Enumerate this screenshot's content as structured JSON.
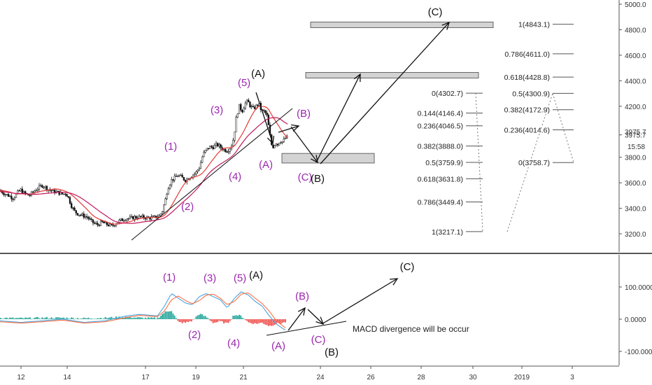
{
  "chart_data": [
    {
      "type": "candlestick",
      "panel": "price",
      "currency_hint": "",
      "y_ticks": [
        "5000.0",
        "4800.0",
        "4600.0",
        "4400.0",
        "4200.0",
        "3975.7",
        "3800.0",
        "3600.0",
        "3400.0",
        "3200.0"
      ],
      "current_price_label": "3975.7",
      "time_label": "15:58",
      "ylim": [
        3120,
        5020
      ],
      "x_ticks": [
        "12",
        "14",
        "17",
        "19",
        "21",
        "24",
        "26",
        "28",
        "30",
        "2019",
        "3"
      ],
      "close_path": [
        [
          0,
          3540
        ],
        [
          5,
          3520
        ],
        [
          10,
          3505
        ],
        [
          14,
          3495
        ],
        [
          18,
          3480
        ],
        [
          22,
          3500
        ],
        [
          26,
          3530
        ],
        [
          30,
          3545
        ],
        [
          34,
          3520
        ],
        [
          38,
          3510
        ],
        [
          42,
          3500
        ],
        [
          46,
          3520
        ],
        [
          50,
          3540
        ],
        [
          55,
          3560
        ],
        [
          60,
          3580
        ],
        [
          64,
          3570
        ],
        [
          68,
          3550
        ],
        [
          72,
          3540
        ],
        [
          76,
          3530
        ],
        [
          80,
          3530
        ],
        [
          85,
          3520
        ],
        [
          90,
          3510
        ],
        [
          94,
          3520
        ],
        [
          98,
          3480
        ],
        [
          102,
          3420
        ],
        [
          106,
          3380
        ],
        [
          110,
          3360
        ],
        [
          115,
          3350
        ],
        [
          120,
          3340
        ],
        [
          125,
          3330
        ],
        [
          130,
          3300
        ],
        [
          135,
          3280
        ],
        [
          140,
          3270
        ],
        [
          145,
          3290
        ],
        [
          150,
          3280
        ],
        [
          155,
          3270
        ],
        [
          160,
          3260
        ],
        [
          165,
          3280
        ],
        [
          170,
          3300
        ],
        [
          175,
          3310
        ],
        [
          180,
          3320
        ],
        [
          186,
          3320
        ],
        [
          192,
          3330
        ],
        [
          198,
          3330
        ],
        [
          204,
          3330
        ],
        [
          210,
          3325
        ],
        [
          216,
          3325
        ],
        [
          222,
          3330
        ],
        [
          228,
          3340
        ],
        [
          232,
          3380
        ],
        [
          236,
          3460
        ],
        [
          240,
          3560
        ],
        [
          245,
          3620
        ],
        [
          250,
          3640
        ],
        [
          255,
          3660
        ],
        [
          260,
          3640
        ],
        [
          265,
          3620
        ],
        [
          270,
          3640
        ],
        [
          275,
          3660
        ],
        [
          280,
          3680
        ],
        [
          285,
          3720
        ],
        [
          290,
          3820
        ],
        [
          295,
          3860
        ],
        [
          300,
          3880
        ],
        [
          305,
          3880
        ],
        [
          310,
          3900
        ],
        [
          315,
          3880
        ],
        [
          320,
          3860
        ],
        [
          325,
          3850
        ],
        [
          330,
          3880
        ],
        [
          334,
          3950
        ],
        [
          338,
          4120
        ],
        [
          342,
          4200
        ],
        [
          346,
          4160
        ],
        [
          350,
          4220
        ],
        [
          354,
          4240
        ],
        [
          358,
          4200
        ],
        [
          362,
          4180
        ],
        [
          366,
          4200
        ],
        [
          370,
          4220
        ],
        [
          374,
          4160
        ],
        [
          378,
          4160
        ],
        [
          382,
          4120
        ],
        [
          385,
          4000
        ],
        [
          388,
          3900
        ],
        [
          391,
          3880
        ],
        [
          394,
          3920
        ],
        [
          397,
          3900
        ],
        [
          400,
          3930
        ],
        [
          404,
          3920
        ],
        [
          408,
          3950
        ],
        [
          412,
          3960
        ]
      ],
      "series": [
        {
          "name": "",
          "color": "#e53935",
          "style": "moving-average"
        },
        {
          "name": "",
          "color": "#c2185b",
          "style": "moving-average"
        }
      ],
      "fib_left": [
        {
          "label": "0(4302.7)",
          "value": 4302.7
        },
        {
          "label": "0.144(4146.4)",
          "value": 4146.4
        },
        {
          "label": "0.236(4046.5)",
          "value": 4046.5
        },
        {
          "label": "0.382(3888.0)",
          "value": 3888.0
        },
        {
          "label": "0.5(3759.9)",
          "value": 3759.9
        },
        {
          "label": "0.618(3631.8)",
          "value": 3631.8
        },
        {
          "label": "0.786(3449.4)",
          "value": 3449.4
        },
        {
          "label": "1(3217.1)",
          "value": 3217.1
        }
      ],
      "fib_right": [
        {
          "label": "1(4843.1)",
          "value": 4843.1
        },
        {
          "label": "0.786(4611.0)",
          "value": 4611.0
        },
        {
          "label": "0.618(4428.8)",
          "value": 4428.8
        },
        {
          "label": "0.5(4300.9)",
          "value": 4300.9
        },
        {
          "label": "0.382(4172.9)",
          "value": 4172.9
        },
        {
          "label": "0.236(4014.6)",
          "value": 4014.6
        },
        {
          "label": "0(3758.7)",
          "value": 3758.7
        }
      ],
      "target_zones": [
        {
          "low": 4820,
          "high": 4860
        },
        {
          "low": 4425,
          "high": 4465
        },
        {
          "low": 3755,
          "high": 3830
        }
      ],
      "wave_labels": [
        "(1)",
        "(2)",
        "(3)",
        "(4)",
        "(5)",
        "(A)",
        "(A)",
        "(B)",
        "(C)",
        "(B)",
        "(C)"
      ]
    },
    {
      "type": "histogram",
      "panel": "macd",
      "y_ticks": [
        "100.0000",
        "0.0000",
        "-100.0000"
      ],
      "ylim": [
        -130,
        195
      ],
      "wave_labels": [
        "(1)",
        "(2)",
        "(3)",
        "(4)",
        "(5)",
        "(A)",
        "(A)",
        "(B)",
        "(C)",
        "(B)",
        "(C)"
      ],
      "annotation": "MACD divergence will be occur",
      "macd_line": [
        [
          0,
          -5
        ],
        [
          30,
          -10
        ],
        [
          60,
          -5
        ],
        [
          90,
          0
        ],
        [
          120,
          -10
        ],
        [
          150,
          -5
        ],
        [
          180,
          10
        ],
        [
          200,
          15
        ],
        [
          225,
          10
        ],
        [
          235,
          40
        ],
        [
          245,
          80
        ],
        [
          255,
          65
        ],
        [
          265,
          50
        ],
        [
          275,
          45
        ],
        [
          285,
          70
        ],
        [
          295,
          80
        ],
        [
          305,
          70
        ],
        [
          315,
          60
        ],
        [
          325,
          35
        ],
        [
          335,
          65
        ],
        [
          345,
          85
        ],
        [
          355,
          75
        ],
        [
          365,
          55
        ],
        [
          375,
          40
        ],
        [
          385,
          10
        ],
        [
          395,
          -15
        ],
        [
          405,
          -30
        ],
        [
          410,
          -35
        ]
      ],
      "signal_line": [
        [
          0,
          -8
        ],
        [
          30,
          -12
        ],
        [
          60,
          -8
        ],
        [
          90,
          -3
        ],
        [
          120,
          -12
        ],
        [
          150,
          -8
        ],
        [
          180,
          5
        ],
        [
          200,
          12
        ],
        [
          225,
          8
        ],
        [
          235,
          25
        ],
        [
          245,
          60
        ],
        [
          255,
          72
        ],
        [
          265,
          58
        ],
        [
          275,
          48
        ],
        [
          285,
          58
        ],
        [
          295,
          75
        ],
        [
          305,
          78
        ],
        [
          315,
          65
        ],
        [
          325,
          45
        ],
        [
          335,
          55
        ],
        [
          345,
          78
        ],
        [
          355,
          82
        ],
        [
          365,
          65
        ],
        [
          375,
          48
        ],
        [
          385,
          25
        ],
        [
          395,
          -5
        ],
        [
          405,
          -22
        ],
        [
          410,
          -30
        ]
      ]
    }
  ]
}
